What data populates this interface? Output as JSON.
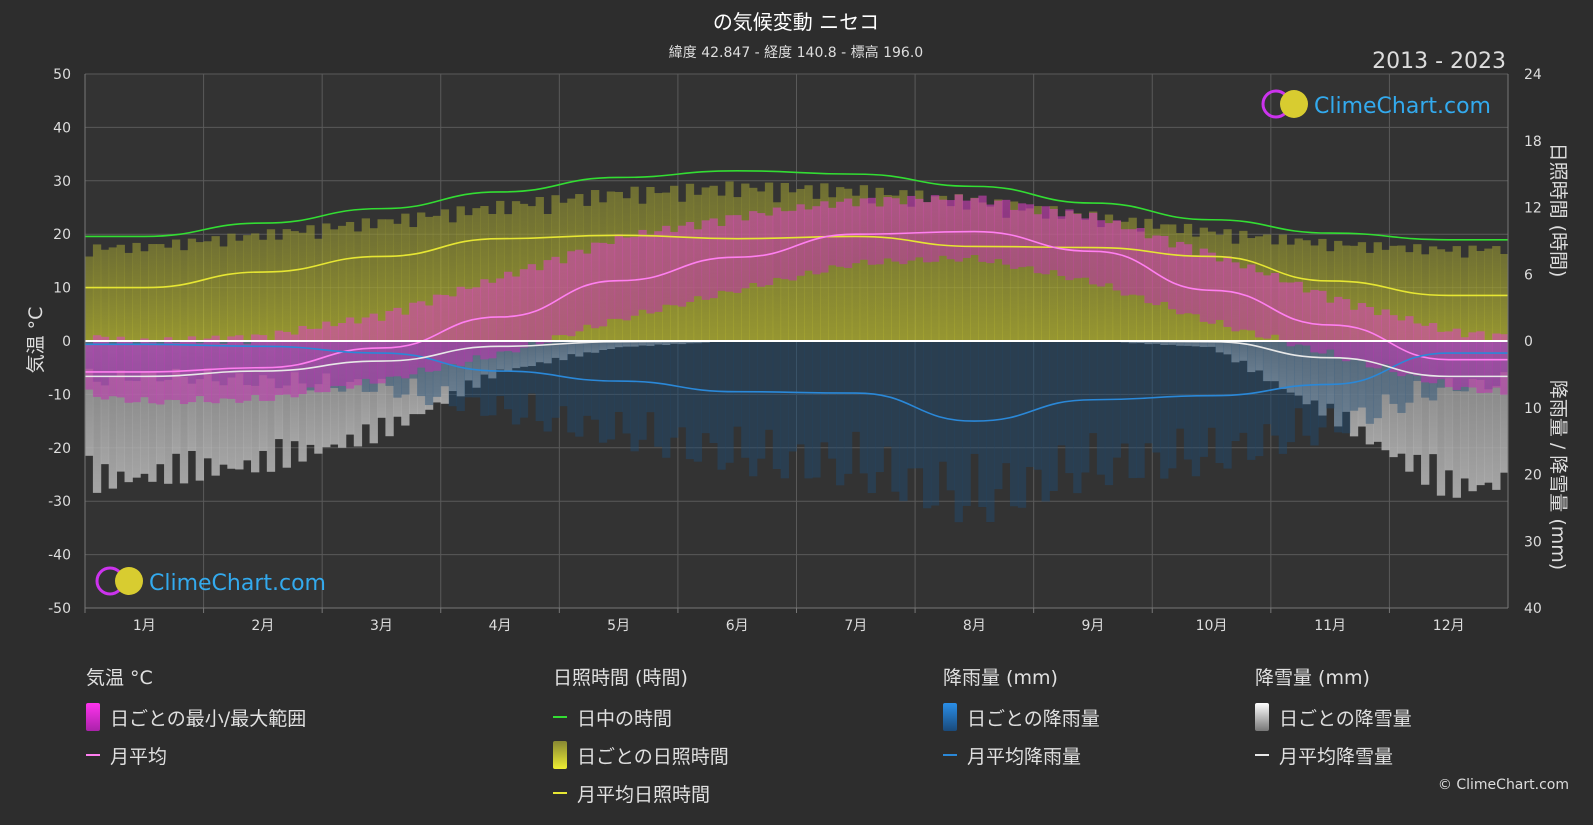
{
  "chart_data": {
    "type": "line",
    "title": "の気候変動 ニセコ",
    "subtitle": "緯度 42.847 - 経度 140.8 - 標高 196.0",
    "period": "2013 - 2023",
    "ylabel_left": "気温 °C",
    "ylabel_right_top": "日照時間 (時間)",
    "ylabel_right_bottom": "降雨量 / 降雪量 (mm)",
    "temp_axis": {
      "min": -50,
      "max": 50,
      "ticks": [
        50,
        40,
        30,
        20,
        10,
        0,
        -10,
        -20,
        -30,
        -40,
        -50
      ]
    },
    "sun_axis": {
      "min": 0,
      "max": 24,
      "ticks": [
        24,
        18,
        12,
        6,
        0
      ]
    },
    "precip_axis": {
      "min": 0,
      "max": 40,
      "ticks": [
        0,
        10,
        20,
        30,
        40
      ]
    },
    "categories": [
      "1月",
      "2月",
      "3月",
      "4月",
      "5月",
      "6月",
      "7月",
      "8月",
      "9月",
      "10月",
      "11月",
      "12月"
    ],
    "grid": true,
    "series": [
      {
        "name": "日中の時間",
        "axis": "sun",
        "color": "#33dd33",
        "values": [
          9.4,
          10.6,
          11.9,
          13.4,
          14.7,
          15.3,
          15.0,
          13.9,
          12.4,
          10.9,
          9.7,
          9.1
        ]
      },
      {
        "name": "月平均日照時間",
        "axis": "sun",
        "color": "#e6e633",
        "values": [
          4.8,
          6.2,
          7.6,
          9.2,
          9.5,
          9.2,
          9.4,
          8.5,
          8.4,
          7.6,
          5.4,
          4.1
        ]
      },
      {
        "name": "月平均",
        "axis": "temp",
        "color": "#ff7ff0",
        "values": [
          -5.8,
          -5.0,
          -1.3,
          4.5,
          11.3,
          15.7,
          20.0,
          20.5,
          16.8,
          9.5,
          3.0,
          -3.5
        ]
      },
      {
        "name": "月平均降雨量",
        "axis": "precip",
        "color": "#2a88d8",
        "values": [
          0.5,
          0.8,
          1.8,
          4.5,
          6.0,
          7.6,
          7.8,
          12.0,
          8.8,
          8.2,
          6.5,
          1.8
        ]
      },
      {
        "name": "月平均降雪量",
        "axis": "precip",
        "color": "#e8e8e8",
        "values": [
          5.3,
          4.5,
          3.0,
          0.8,
          0.1,
          0.0,
          0.0,
          0.0,
          0.0,
          0.1,
          2.5,
          5.3
        ]
      }
    ],
    "temp_range_min": [
      -10.5,
      -10.0,
      -6.5,
      -1.5,
      5.0,
      10.5,
      15.5,
      16.5,
      12.0,
      4.5,
      -1.5,
      -7.5
    ],
    "temp_range_max": [
      -1.5,
      -0.5,
      3.5,
      10.5,
      18.0,
      22.0,
      25.0,
      25.5,
      22.0,
      15.0,
      7.0,
      0.5
    ],
    "daily_snow_typical": [
      22,
      20,
      15,
      5,
      1,
      0,
      0,
      0,
      0,
      1,
      12,
      24
    ],
    "daily_rain_typical": [
      6,
      7,
      8,
      12,
      16,
      20,
      22,
      28,
      22,
      20,
      15,
      8
    ],
    "logo_text": "ClimeChart.com"
  },
  "legend": {
    "temp": {
      "title": "気温 °C",
      "range": "日ごとの最小/最大範囲",
      "avg": "月平均"
    },
    "sun": {
      "title": "日照時間 (時間)",
      "daylight": "日中の時間",
      "daily": "日ごとの日照時間",
      "avg": "月平均日照時間"
    },
    "rain": {
      "title": "降雨量 (mm)",
      "daily": "日ごとの降雨量",
      "avg": "月平均降雨量"
    },
    "snow": {
      "title": "降雪量 (mm)",
      "daily": "日ごとの降雪量",
      "avg": "月平均降雪量"
    }
  },
  "copyright": "© ClimeChart.com"
}
